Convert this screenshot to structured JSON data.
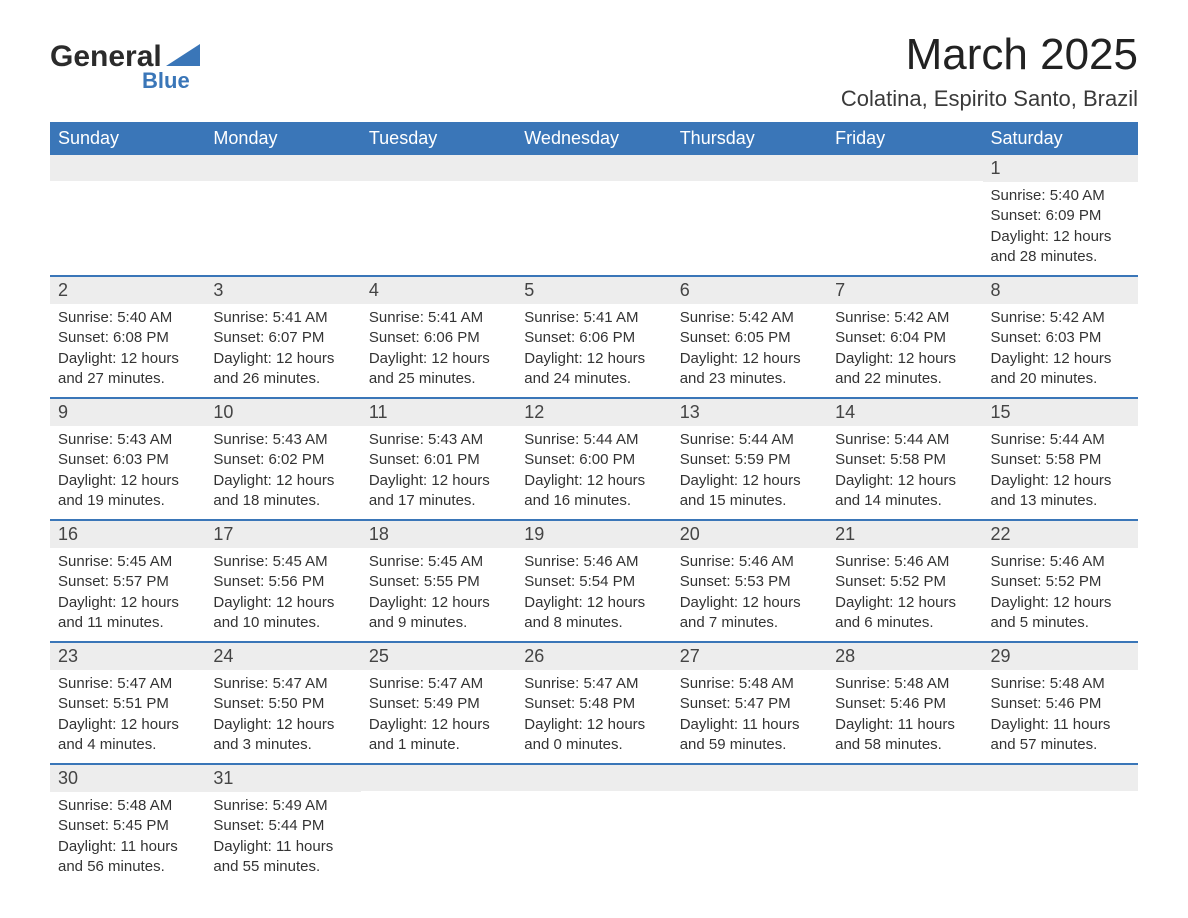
{
  "brand": {
    "line1": "General",
    "line2": "Blue",
    "shape_color": "#3a76b8"
  },
  "title": "March 2025",
  "location": "Colatina, Espirito Santo, Brazil",
  "colors": {
    "header_bg": "#3a76b8",
    "header_text": "#ffffff",
    "row_divider": "#3a76b8",
    "daynum_bg": "#ededed",
    "text": "#333333",
    "page_bg": "#ffffff"
  },
  "weekdays": [
    "Sunday",
    "Monday",
    "Tuesday",
    "Wednesday",
    "Thursday",
    "Friday",
    "Saturday"
  ],
  "labels": {
    "sunrise": "Sunrise:",
    "sunset": "Sunset:",
    "daylight": "Daylight:"
  },
  "weeks": [
    [
      null,
      null,
      null,
      null,
      null,
      null,
      {
        "n": "1",
        "sunrise": "5:40 AM",
        "sunset": "6:09 PM",
        "daylight": "12 hours and 28 minutes."
      }
    ],
    [
      {
        "n": "2",
        "sunrise": "5:40 AM",
        "sunset": "6:08 PM",
        "daylight": "12 hours and 27 minutes."
      },
      {
        "n": "3",
        "sunrise": "5:41 AM",
        "sunset": "6:07 PM",
        "daylight": "12 hours and 26 minutes."
      },
      {
        "n": "4",
        "sunrise": "5:41 AM",
        "sunset": "6:06 PM",
        "daylight": "12 hours and 25 minutes."
      },
      {
        "n": "5",
        "sunrise": "5:41 AM",
        "sunset": "6:06 PM",
        "daylight": "12 hours and 24 minutes."
      },
      {
        "n": "6",
        "sunrise": "5:42 AM",
        "sunset": "6:05 PM",
        "daylight": "12 hours and 23 minutes."
      },
      {
        "n": "7",
        "sunrise": "5:42 AM",
        "sunset": "6:04 PM",
        "daylight": "12 hours and 22 minutes."
      },
      {
        "n": "8",
        "sunrise": "5:42 AM",
        "sunset": "6:03 PM",
        "daylight": "12 hours and 20 minutes."
      }
    ],
    [
      {
        "n": "9",
        "sunrise": "5:43 AM",
        "sunset": "6:03 PM",
        "daylight": "12 hours and 19 minutes."
      },
      {
        "n": "10",
        "sunrise": "5:43 AM",
        "sunset": "6:02 PM",
        "daylight": "12 hours and 18 minutes."
      },
      {
        "n": "11",
        "sunrise": "5:43 AM",
        "sunset": "6:01 PM",
        "daylight": "12 hours and 17 minutes."
      },
      {
        "n": "12",
        "sunrise": "5:44 AM",
        "sunset": "6:00 PM",
        "daylight": "12 hours and 16 minutes."
      },
      {
        "n": "13",
        "sunrise": "5:44 AM",
        "sunset": "5:59 PM",
        "daylight": "12 hours and 15 minutes."
      },
      {
        "n": "14",
        "sunrise": "5:44 AM",
        "sunset": "5:58 PM",
        "daylight": "12 hours and 14 minutes."
      },
      {
        "n": "15",
        "sunrise": "5:44 AM",
        "sunset": "5:58 PM",
        "daylight": "12 hours and 13 minutes."
      }
    ],
    [
      {
        "n": "16",
        "sunrise": "5:45 AM",
        "sunset": "5:57 PM",
        "daylight": "12 hours and 11 minutes."
      },
      {
        "n": "17",
        "sunrise": "5:45 AM",
        "sunset": "5:56 PM",
        "daylight": "12 hours and 10 minutes."
      },
      {
        "n": "18",
        "sunrise": "5:45 AM",
        "sunset": "5:55 PM",
        "daylight": "12 hours and 9 minutes."
      },
      {
        "n": "19",
        "sunrise": "5:46 AM",
        "sunset": "5:54 PM",
        "daylight": "12 hours and 8 minutes."
      },
      {
        "n": "20",
        "sunrise": "5:46 AM",
        "sunset": "5:53 PM",
        "daylight": "12 hours and 7 minutes."
      },
      {
        "n": "21",
        "sunrise": "5:46 AM",
        "sunset": "5:52 PM",
        "daylight": "12 hours and 6 minutes."
      },
      {
        "n": "22",
        "sunrise": "5:46 AM",
        "sunset": "5:52 PM",
        "daylight": "12 hours and 5 minutes."
      }
    ],
    [
      {
        "n": "23",
        "sunrise": "5:47 AM",
        "sunset": "5:51 PM",
        "daylight": "12 hours and 4 minutes."
      },
      {
        "n": "24",
        "sunrise": "5:47 AM",
        "sunset": "5:50 PM",
        "daylight": "12 hours and 3 minutes."
      },
      {
        "n": "25",
        "sunrise": "5:47 AM",
        "sunset": "5:49 PM",
        "daylight": "12 hours and 1 minute."
      },
      {
        "n": "26",
        "sunrise": "5:47 AM",
        "sunset": "5:48 PM",
        "daylight": "12 hours and 0 minutes."
      },
      {
        "n": "27",
        "sunrise": "5:48 AM",
        "sunset": "5:47 PM",
        "daylight": "11 hours and 59 minutes."
      },
      {
        "n": "28",
        "sunrise": "5:48 AM",
        "sunset": "5:46 PM",
        "daylight": "11 hours and 58 minutes."
      },
      {
        "n": "29",
        "sunrise": "5:48 AM",
        "sunset": "5:46 PM",
        "daylight": "11 hours and 57 minutes."
      }
    ],
    [
      {
        "n": "30",
        "sunrise": "5:48 AM",
        "sunset": "5:45 PM",
        "daylight": "11 hours and 56 minutes."
      },
      {
        "n": "31",
        "sunrise": "5:49 AM",
        "sunset": "5:44 PM",
        "daylight": "11 hours and 55 minutes."
      },
      null,
      null,
      null,
      null,
      null
    ]
  ]
}
